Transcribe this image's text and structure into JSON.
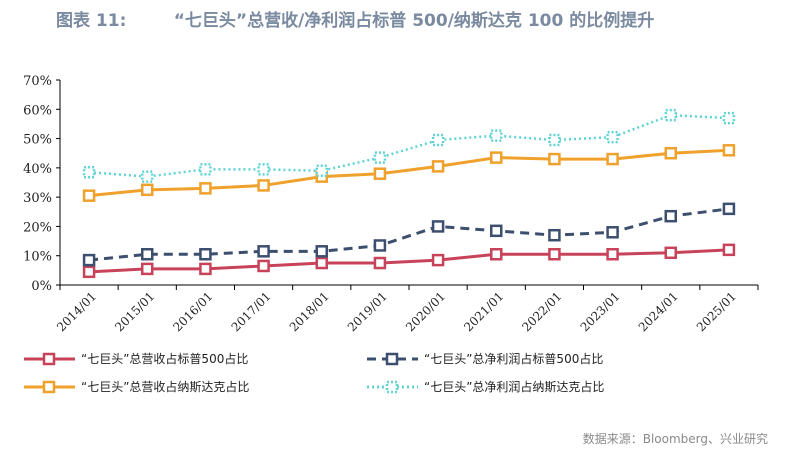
{
  "title_label": "图表 11:",
  "title_text": "“七巨头”总营收/净利润占标普 500/纳斯达克 100 的比例提升",
  "source": "数据来源：Bloomberg、兴业研究",
  "chart_data": {
    "type": "line",
    "categories": [
      "2014/01",
      "2015/01",
      "2016/01",
      "2017/01",
      "2018/01",
      "2019/01",
      "2020/01",
      "2021/01",
      "2022/01",
      "2023/01",
      "2024/01",
      "2025/01"
    ],
    "yticks": [
      "0%",
      "10%",
      "20%",
      "30%",
      "40%",
      "50%",
      "60%",
      "70%"
    ],
    "ylim": [
      0,
      70
    ],
    "legend_position": "bottom",
    "series": [
      {
        "name": "“七巨头”总营收占标普500占比",
        "color": "#c8435a",
        "style": "solid",
        "values": [
          4.5,
          5.5,
          5.5,
          6.5,
          7.5,
          7.5,
          8.5,
          10.5,
          10.5,
          10.5,
          11,
          12
        ]
      },
      {
        "name": "“七巨头”总净利润占标普500占比",
        "color": "#3d4f6e",
        "style": "dashed",
        "values": [
          8.5,
          10.5,
          10.5,
          11.5,
          11.5,
          13.5,
          20,
          18.5,
          17,
          18,
          23.5,
          26
        ]
      },
      {
        "name": "“七巨头”总营收占纳斯达克占比",
        "color": "#f0a12c",
        "style": "solid",
        "values": [
          30.5,
          32.5,
          33,
          34,
          37,
          38,
          40.5,
          43.5,
          43,
          43,
          45,
          46
        ]
      },
      {
        "name": "“七巨头”总净利润占纳斯达克占比",
        "color": "#5fd3d3",
        "style": "dotted",
        "values": [
          38.5,
          37,
          39.5,
          39.5,
          39,
          43.5,
          49.5,
          51,
          49.5,
          50.5,
          58,
          57
        ]
      }
    ]
  }
}
